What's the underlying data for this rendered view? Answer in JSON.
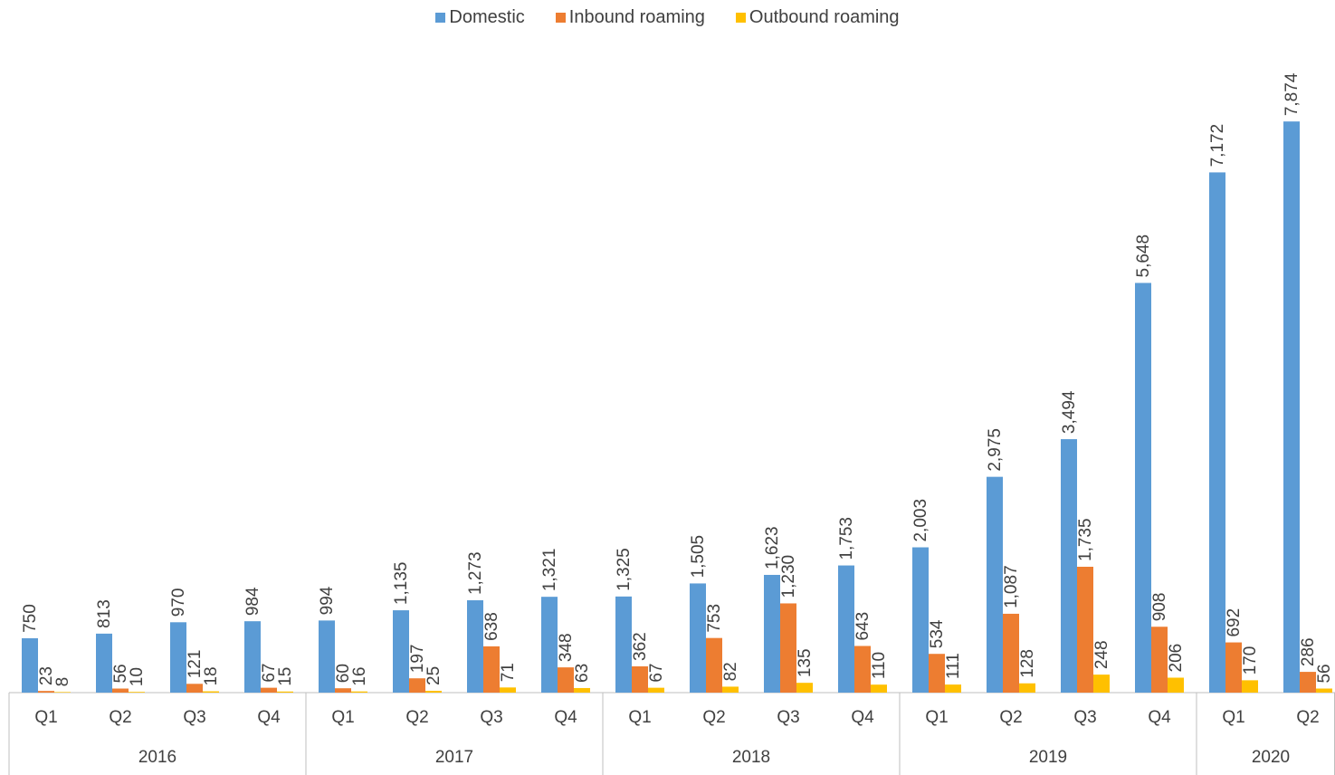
{
  "chart_data": {
    "type": "bar",
    "title": "",
    "xlabel": "",
    "ylabel": "",
    "legend_position": "top",
    "ylim": [
      0,
      8600
    ],
    "grid": false,
    "groups": [
      {
        "label": "2016",
        "quarters": [
          "Q1",
          "Q2",
          "Q3",
          "Q4"
        ]
      },
      {
        "label": "2017",
        "quarters": [
          "Q1",
          "Q2",
          "Q3",
          "Q4"
        ]
      },
      {
        "label": "2018",
        "quarters": [
          "Q1",
          "Q2",
          "Q3",
          "Q4"
        ]
      },
      {
        "label": "2019",
        "quarters": [
          "Q1",
          "Q2",
          "Q3",
          "Q4"
        ]
      },
      {
        "label": "2020",
        "quarters": [
          "Q1",
          "Q2"
        ]
      }
    ],
    "series": [
      {
        "name": "Domestic",
        "color": "#5B9BD5",
        "values": [
          750,
          813,
          970,
          984,
          994,
          1135,
          1273,
          1321,
          1325,
          1505,
          1623,
          1753,
          2003,
          2975,
          3494,
          5648,
          7172,
          7874
        ],
        "labels": [
          "750",
          "813",
          "970",
          "984",
          "994",
          "1,135",
          "1,273",
          "1,321",
          "1,325",
          "1,505",
          "1,623",
          "1,753",
          "2,003",
          "2,975",
          "3,494",
          "5,648",
          "7,172",
          "7,874"
        ]
      },
      {
        "name": "Inbound roaming",
        "color": "#ED7D31",
        "values": [
          23,
          56,
          121,
          67,
          60,
          197,
          638,
          348,
          362,
          753,
          1230,
          643,
          534,
          1087,
          1735,
          908,
          692,
          286
        ],
        "labels": [
          "23",
          "56",
          "121",
          "67",
          "60",
          "197",
          "638",
          "348",
          "362",
          "753",
          "1,230",
          "643",
          "534",
          "1,087",
          "1,735",
          "908",
          "692",
          "286"
        ]
      },
      {
        "name": "Outbound roaming",
        "color": "#FFC000",
        "values": [
          8,
          10,
          18,
          15,
          16,
          25,
          71,
          63,
          67,
          82,
          135,
          110,
          111,
          128,
          248,
          206,
          170,
          56
        ],
        "labels": [
          "8",
          "10",
          "18",
          "15",
          "16",
          "25",
          "71",
          "63",
          "67",
          "82",
          "135",
          "110",
          "111",
          "128",
          "248",
          "206",
          "170",
          "56"
        ]
      }
    ]
  }
}
